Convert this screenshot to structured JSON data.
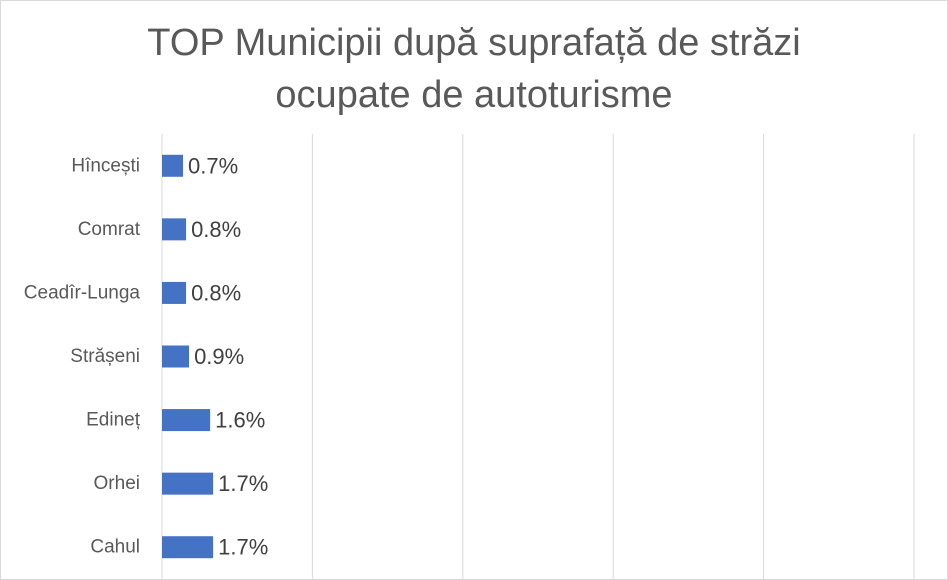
{
  "chart_data": {
    "type": "bar",
    "orientation": "horizontal",
    "title_lines": [
      "TOP Municipii după suprafață de străzi",
      "ocupate de autoturisme"
    ],
    "categories": [
      "Hîncești",
      "Comrat",
      "Ceadîr-Lunga",
      "Strășeni",
      "Edineț",
      "Orhei",
      "Cahul"
    ],
    "values": [
      0.7,
      0.8,
      0.8,
      0.9,
      1.6,
      1.7,
      1.7
    ],
    "value_labels": [
      "0.7%",
      "0.8%",
      "0.8%",
      "0.9%",
      "1.6%",
      "1.7%",
      "1.7%"
    ],
    "xlim": [
      0,
      25
    ],
    "unit": "%",
    "grid": true,
    "legend": "none",
    "bar_color": "#4472c4",
    "grid_color": "#d9d9d9"
  }
}
